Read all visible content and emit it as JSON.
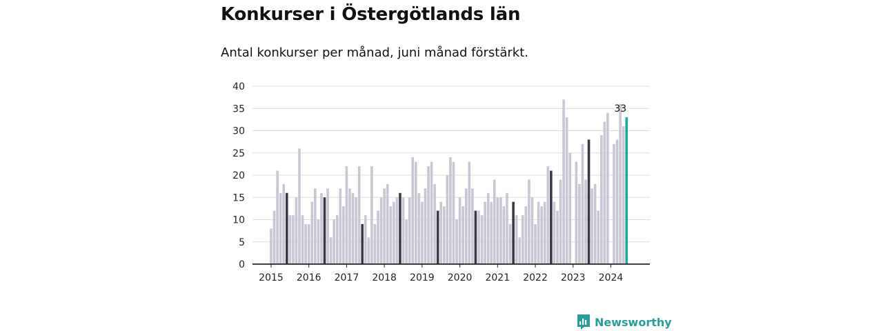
{
  "title": "Konkurser i Östergötlands län",
  "subtitle": "Antal konkurser per månad, juni månad förstärkt.",
  "brand": {
    "name": "Newsworthy",
    "logo_icon": "bar-chart-speech-bubble-icon"
  },
  "colors": {
    "bar": "#c8c7d4",
    "highlight": "#3a3a46",
    "latest": "#1aa89f",
    "grid": "#dcdcdc",
    "axis": "#222222",
    "brand": "#2a9d9a"
  },
  "chart_data": {
    "type": "bar",
    "title": "Konkurser i Östergötlands län",
    "subtitle": "Antal konkurser per månad, juni månad förstärkt.",
    "xlabel": "",
    "ylabel": "",
    "ylim": [
      0,
      40
    ],
    "yticks": [
      0,
      5,
      10,
      15,
      20,
      25,
      30,
      35,
      40
    ],
    "xticks": [
      "2015",
      "2016",
      "2017",
      "2018",
      "2019",
      "2020",
      "2021",
      "2022",
      "2023",
      "2024"
    ],
    "grid": true,
    "start": "2015-01",
    "end": "2024-06",
    "highlight_month": "juni",
    "latest_label": "33",
    "values": [
      8,
      12,
      21,
      16,
      18,
      16,
      11,
      11,
      15,
      26,
      11,
      9,
      9,
      14,
      17,
      10,
      16,
      15,
      17,
      6,
      10,
      11,
      17,
      13,
      22,
      17,
      16,
      15,
      22,
      9,
      11,
      6,
      22,
      9,
      12,
      15,
      17,
      18,
      13,
      14,
      15,
      16,
      15,
      10,
      15,
      24,
      23,
      16,
      14,
      17,
      22,
      23,
      18,
      12,
      14,
      13,
      20,
      24,
      23,
      10,
      15,
      13,
      17,
      23,
      17,
      12,
      12,
      11,
      14,
      16,
      14,
      19,
      15,
      15,
      13,
      16,
      9,
      14,
      11,
      6,
      11,
      13,
      19,
      15,
      9,
      14,
      13,
      14,
      22,
      21,
      14,
      12,
      19,
      37,
      33,
      25,
      0,
      23,
      18,
      27,
      19,
      28,
      17,
      18,
      12,
      29,
      32,
      34,
      0,
      27,
      28,
      36,
      31,
      33
    ]
  }
}
